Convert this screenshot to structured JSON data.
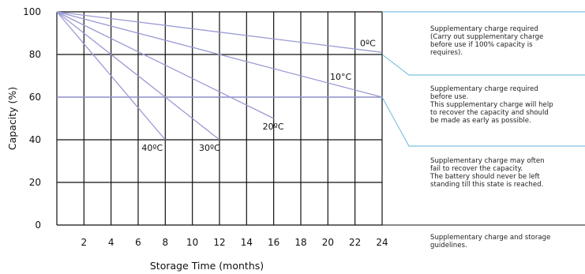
{
  "chart_data": {
    "type": "line",
    "xlabel": "Storage Time (months)",
    "ylabel": "Capacity (%)",
    "xlim": [
      0,
      24
    ],
    "ylim": [
      0,
      100
    ],
    "x_ticks": [
      "2",
      "4",
      "6",
      "8",
      "10",
      "12",
      "14",
      "16",
      "18",
      "20",
      "22",
      "24"
    ],
    "y_ticks": [
      "0",
      "20",
      "40",
      "60",
      "80",
      "100"
    ],
    "grid": true,
    "series": [
      {
        "name": "0ºC",
        "x": [
          0,
          24
        ],
        "y": [
          100,
          81
        ]
      },
      {
        "name": "10°C",
        "x": [
          0,
          24
        ],
        "y": [
          100,
          60
        ]
      },
      {
        "name": "20ºC",
        "x": [
          0,
          16
        ],
        "y": [
          100,
          50
        ]
      },
      {
        "name": "30ºC",
        "x": [
          0,
          12
        ],
        "y": [
          100,
          40
        ]
      },
      {
        "name": "40ºC",
        "x": [
          0,
          8
        ],
        "y": [
          100,
          40
        ]
      }
    ],
    "annotations": [
      {
        "y_range": [
          80,
          100
        ],
        "lines": [
          "Supplementary charge required",
          "(Carry out supplementary charge",
          "before use if 100% capacity is",
          "requires)."
        ]
      },
      {
        "y_range": [
          60,
          80
        ],
        "lines": [
          "Supplementary charge required",
          "before use.",
          "This supplementary charge will help",
          "to recover the capacity and should",
          "be made as early as possible."
        ]
      },
      {
        "y_range": [
          20,
          60
        ],
        "lines": [
          "Supplementary charge may often",
          "fail to recover the capacity.",
          "The battery should never be left",
          "standing till this state is reached."
        ]
      },
      {
        "y_range": [
          0,
          20
        ],
        "lines": [
          "Supplementary charge and storage",
          "guidelines."
        ]
      }
    ]
  }
}
